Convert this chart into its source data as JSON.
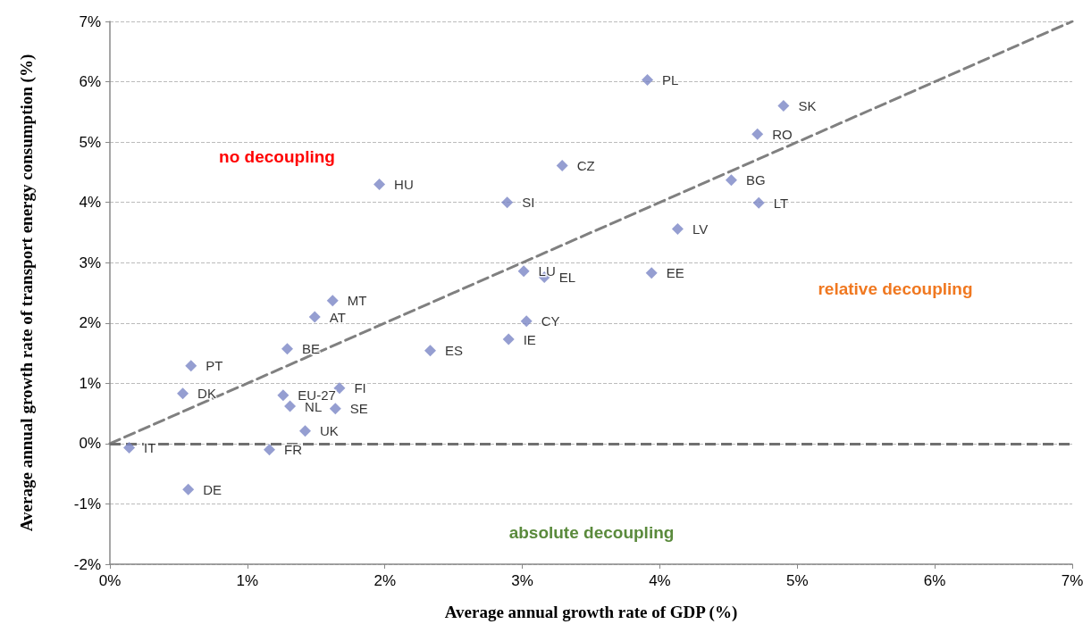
{
  "chart_data": {
    "type": "scatter",
    "xlabel": "Average annual growth rate of GDP (%)",
    "ylabel": "Average annual growth rate of transport energy consumption (%)",
    "xlim": [
      0,
      7
    ],
    "ylim": [
      -2,
      7
    ],
    "xticks": [
      {
        "value": 0,
        "label": "0%"
      },
      {
        "value": 1,
        "label": "1%"
      },
      {
        "value": 2,
        "label": "2%"
      },
      {
        "value": 3,
        "label": "3%"
      },
      {
        "value": 4,
        "label": "4%"
      },
      {
        "value": 5,
        "label": "5%"
      },
      {
        "value": 6,
        "label": "6%"
      },
      {
        "value": 7,
        "label": "7%"
      }
    ],
    "yticks": [
      {
        "value": -2,
        "label": "-2%"
      },
      {
        "value": -1,
        "label": "-1%"
      },
      {
        "value": 0,
        "label": "0%"
      },
      {
        "value": 1,
        "label": "1%"
      },
      {
        "value": 2,
        "label": "2%"
      },
      {
        "value": 3,
        "label": "3%"
      },
      {
        "value": 4,
        "label": "4%"
      },
      {
        "value": 5,
        "label": "5%"
      },
      {
        "value": 6,
        "label": "6%"
      },
      {
        "value": 7,
        "label": "7%"
      }
    ],
    "grid": "y",
    "legend": false,
    "marker": "diamond",
    "series": [
      {
        "name": "PL",
        "color": "#7b86c6",
        "x": [
          3.91
        ],
        "values": [
          6.03
        ]
      },
      {
        "name": "SK",
        "color": "#7b86c6",
        "x": [
          4.9
        ],
        "values": [
          5.6
        ]
      },
      {
        "name": "RO",
        "color": "#7b86c6",
        "x": [
          4.71
        ],
        "values": [
          5.13
        ]
      },
      {
        "name": "CZ",
        "color": "#7b86c6",
        "x": [
          3.29
        ],
        "values": [
          4.61
        ]
      },
      {
        "name": "BG",
        "color": "#7b86c6",
        "x": [
          4.52
        ],
        "values": [
          4.37
        ]
      },
      {
        "name": "HU",
        "color": "#7b86c6",
        "x": [
          1.96
        ],
        "values": [
          4.3
        ]
      },
      {
        "name": "SI",
        "color": "#7b86c6",
        "x": [
          2.89
        ],
        "values": [
          4.0
        ]
      },
      {
        "name": "LT",
        "color": "#7b86c6",
        "x": [
          4.72
        ],
        "values": [
          3.99
        ]
      },
      {
        "name": "LV",
        "color": "#7b86c6",
        "x": [
          4.13
        ],
        "values": [
          3.56
        ]
      },
      {
        "name": "LU",
        "color": "#7b86c6",
        "x": [
          3.01
        ],
        "values": [
          2.86
        ]
      },
      {
        "name": "EE",
        "color": "#7b86c6",
        "x": [
          3.94
        ],
        "values": [
          2.83
        ]
      },
      {
        "name": "EL",
        "color": "#7b86c6",
        "x": [
          3.16
        ],
        "values": [
          2.76
        ]
      },
      {
        "name": "MT",
        "color": "#7b86c6",
        "x": [
          1.62
        ],
        "values": [
          2.37
        ]
      },
      {
        "name": "AT",
        "color": "#7b86c6",
        "x": [
          1.49
        ],
        "values": [
          2.1
        ]
      },
      {
        "name": "CY",
        "color": "#7b86c6",
        "x": [
          3.03
        ],
        "values": [
          2.03
        ]
      },
      {
        "name": "IE",
        "color": "#7b86c6",
        "x": [
          2.9
        ],
        "values": [
          1.73
        ]
      },
      {
        "name": "ES",
        "color": "#7b86c6",
        "x": [
          2.33
        ],
        "values": [
          1.54
        ]
      },
      {
        "name": "BE",
        "color": "#7b86c6",
        "x": [
          1.29
        ],
        "values": [
          1.57
        ]
      },
      {
        "name": "PT",
        "color": "#7b86c6",
        "x": [
          0.59
        ],
        "values": [
          1.29
        ]
      },
      {
        "name": "DK",
        "color": "#7b86c6",
        "x": [
          0.53
        ],
        "values": [
          0.83
        ]
      },
      {
        "name": "EU-27",
        "color": "#7b86c6",
        "x": [
          1.26
        ],
        "values": [
          0.8
        ]
      },
      {
        "name": "FI",
        "color": "#7b86c6",
        "x": [
          1.67
        ],
        "values": [
          0.92
        ]
      },
      {
        "name": "NL",
        "color": "#7b86c6",
        "x": [
          1.31
        ],
        "values": [
          0.62
        ]
      },
      {
        "name": "SE",
        "color": "#7b86c6",
        "x": [
          1.64
        ],
        "values": [
          0.58
        ]
      },
      {
        "name": "UK",
        "color": "#7b86c6",
        "x": [
          1.42
        ],
        "values": [
          0.21
        ]
      },
      {
        "name": "IT",
        "color": "#7b86c6",
        "x": [
          0.14
        ],
        "values": [
          -0.07
        ]
      },
      {
        "name": "FR",
        "color": "#7b86c6",
        "x": [
          1.16
        ],
        "values": [
          -0.1
        ]
      },
      {
        "name": "DE",
        "color": "#7b86c6",
        "x": [
          0.57
        ],
        "values": [
          -0.76
        ]
      },
      {
        "type": "line",
        "color": "#808080",
        "line_style": "dashed",
        "marker": "none",
        "x": [
          0,
          7
        ],
        "values": [
          0,
          7
        ]
      }
    ],
    "ref_lines": [
      {
        "axis": "y",
        "value": 0,
        "color": "#707070",
        "line_style": "dashed"
      }
    ],
    "annotations": [
      "no decoupling",
      "relative decoupling",
      "absolute decoupling"
    ]
  }
}
